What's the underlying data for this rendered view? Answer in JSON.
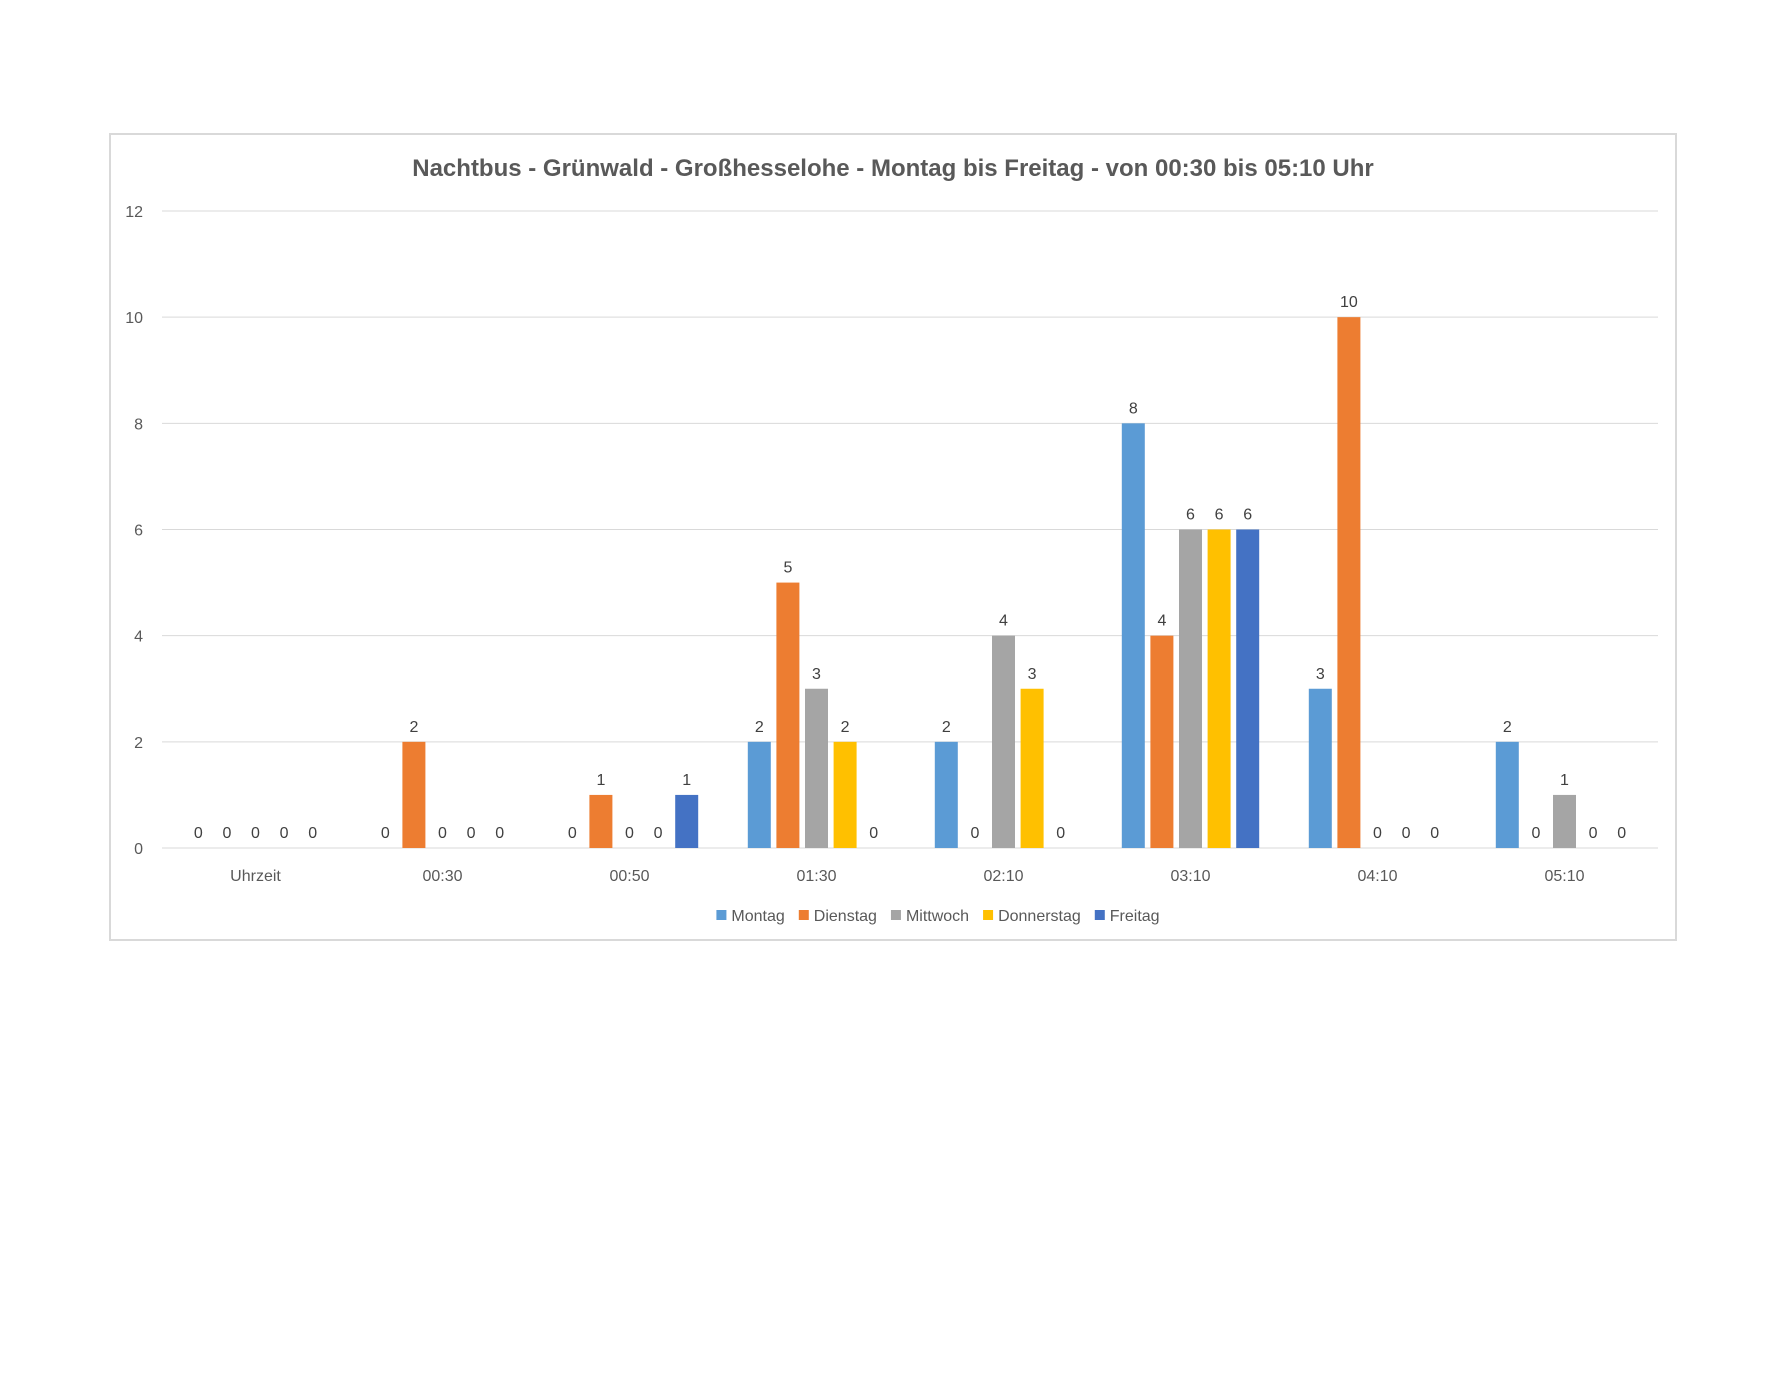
{
  "chart_data": {
    "type": "bar",
    "title": "Nachtbus - Grünwald - Großhesselohe - Montag bis Freitag - von 00:30 bis 05:10 Uhr",
    "xlabel": "",
    "ylabel": "",
    "ylim": [
      0,
      12
    ],
    "yticks": [
      0,
      2,
      4,
      6,
      8,
      10,
      12
    ],
    "grid": true,
    "legend_position": "bottom",
    "categories": [
      "Uhrzeit",
      "00:30",
      "00:50",
      "01:30",
      "02:10",
      "03:10",
      "04:10",
      "05:10"
    ],
    "series": [
      {
        "name": "Montag",
        "color": "#5b9bd5",
        "values": [
          0,
          0,
          0,
          2,
          2,
          8,
          3,
          2
        ]
      },
      {
        "name": "Dienstag",
        "color": "#ed7d31",
        "values": [
          0,
          2,
          1,
          5,
          0,
          4,
          10,
          0
        ]
      },
      {
        "name": "Mittwoch",
        "color": "#a5a5a5",
        "values": [
          0,
          0,
          0,
          3,
          4,
          6,
          0,
          1
        ]
      },
      {
        "name": "Donnerstag",
        "color": "#ffc000",
        "values": [
          0,
          0,
          0,
          2,
          3,
          6,
          0,
          0
        ]
      },
      {
        "name": "Freitag",
        "color": "#4472c4",
        "values": [
          0,
          0,
          1,
          0,
          0,
          6,
          0,
          0
        ]
      }
    ]
  }
}
